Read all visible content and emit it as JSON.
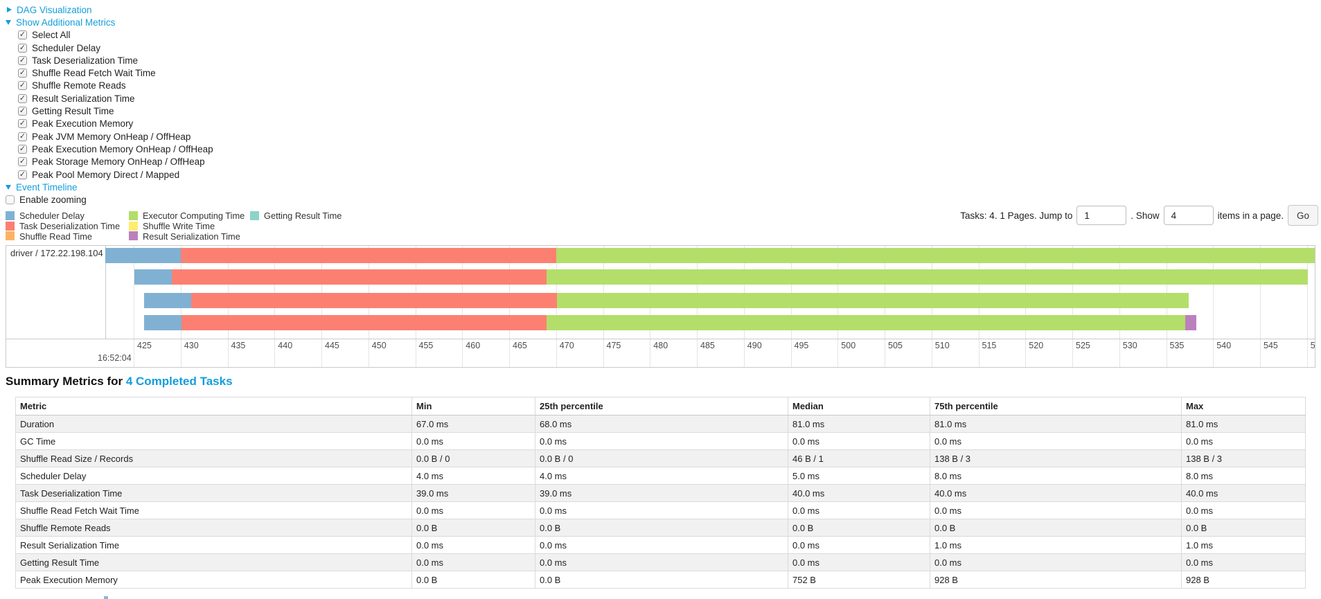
{
  "colors": {
    "link": "#129edb",
    "scheduler_delay": "#80B1D3",
    "task_deserialization": "#FB8072",
    "shuffle_read": "#FDB462",
    "executor_computing": "#B3DE69",
    "shuffle_write": "#FFED6F",
    "result_serialization": "#BC80BD",
    "getting_result": "#8DD3C7"
  },
  "sections": {
    "dag": {
      "label": "DAG Visualization",
      "state": "collapsed"
    },
    "metrics": {
      "label": "Show Additional Metrics",
      "state": "expanded"
    },
    "timeline": {
      "label": "Event Timeline",
      "state": "expanded"
    }
  },
  "metric_checkboxes": [
    {
      "label": "Select All",
      "checked": true
    },
    {
      "label": "Scheduler Delay",
      "checked": true
    },
    {
      "label": "Task Deserialization Time",
      "checked": true
    },
    {
      "label": "Shuffle Read Fetch Wait Time",
      "checked": true
    },
    {
      "label": "Shuffle Remote Reads",
      "checked": true
    },
    {
      "label": "Result Serialization Time",
      "checked": true
    },
    {
      "label": "Getting Result Time",
      "checked": true
    },
    {
      "label": "Peak Execution Memory",
      "checked": true
    },
    {
      "label": "Peak JVM Memory OnHeap / OffHeap",
      "checked": true
    },
    {
      "label": "Peak Execution Memory OnHeap / OffHeap",
      "checked": true
    },
    {
      "label": "Peak Storage Memory OnHeap / OffHeap",
      "checked": true
    },
    {
      "label": "Peak Pool Memory Direct / Mapped",
      "checked": true
    }
  ],
  "enable_zooming": {
    "label": "Enable zooming",
    "checked": false
  },
  "legend": {
    "columns": [
      [
        {
          "label": "Scheduler Delay",
          "color": "#80B1D3"
        },
        {
          "label": "Task Deserialization Time",
          "color": "#FB8072"
        },
        {
          "label": "Shuffle Read Time",
          "color": "#FDB462"
        }
      ],
      [
        {
          "label": "Executor Computing Time",
          "color": "#B3DE69"
        },
        {
          "label": "Shuffle Write Time",
          "color": "#FFED6F"
        },
        {
          "label": "Result Serialization Time",
          "color": "#BC80BD"
        }
      ],
      [
        {
          "label": "Getting Result Time",
          "color": "#8DD3C7"
        }
      ]
    ]
  },
  "pagination": {
    "tasks_text": "Tasks: 4. 1 Pages. Jump to",
    "jump_value": "1",
    "show_text": ". Show",
    "show_value": "4",
    "items_text": "items in a page.",
    "go_label": "Go"
  },
  "timeline_chart": {
    "type": "timeline",
    "group_label": "driver / 172.22.198.104",
    "axis": {
      "major_label": "16:52:04",
      "tick_start_ms": 425,
      "tick_step_ms": 5,
      "tick_count": 26
    },
    "tasks": [
      {
        "start": 422.0,
        "scheduler_delay_end": 430.0,
        "deserialization_end": 470.0,
        "computing_end": 551.5
      },
      {
        "start": 425.05,
        "scheduler_delay_end": 429.05,
        "deserialization_end": 469.0,
        "computing_end": 550.1
      },
      {
        "start": 426.1,
        "scheduler_delay_end": 431.1,
        "deserialization_end": 470.1,
        "computing_end": 537.4
      },
      {
        "start": 426.1,
        "scheduler_delay_end": 430.1,
        "deserialization_end": 469.0,
        "computing_end": 537.0,
        "result_serialization_end": 538.2
      }
    ]
  },
  "summary": {
    "title_prefix": "Summary Metrics for ",
    "title_link": "4 Completed Tasks",
    "table": {
      "headers": [
        "Metric",
        "Min",
        "25th percentile",
        "Median",
        "75th percentile",
        "Max"
      ],
      "rows": [
        [
          "Duration",
          "67.0 ms",
          "68.0 ms",
          "81.0 ms",
          "81.0 ms",
          "81.0 ms"
        ],
        [
          "GC Time",
          "0.0 ms",
          "0.0 ms",
          "0.0 ms",
          "0.0 ms",
          "0.0 ms"
        ],
        [
          "Shuffle Read Size / Records",
          "0.0 B / 0",
          "0.0 B / 0",
          "46 B / 1",
          "138 B / 3",
          "138 B / 3"
        ],
        [
          "Scheduler Delay",
          "4.0 ms",
          "4.0 ms",
          "5.0 ms",
          "8.0 ms",
          "8.0 ms"
        ],
        [
          "Task Deserialization Time",
          "39.0 ms",
          "39.0 ms",
          "40.0 ms",
          "40.0 ms",
          "40.0 ms"
        ],
        [
          "Shuffle Read Fetch Wait Time",
          "0.0 ms",
          "0.0 ms",
          "0.0 ms",
          "0.0 ms",
          "0.0 ms"
        ],
        [
          "Shuffle Remote Reads",
          "0.0 B",
          "0.0 B",
          "0.0 B",
          "0.0 B",
          "0.0 B"
        ],
        [
          "Result Serialization Time",
          "0.0 ms",
          "0.0 ms",
          "0.0 ms",
          "1.0 ms",
          "1.0 ms"
        ],
        [
          "Getting Result Time",
          "0.0 ms",
          "0.0 ms",
          "0.0 ms",
          "0.0 ms",
          "0.0 ms"
        ],
        [
          "Peak Execution Memory",
          "0.0 B",
          "0.0 B",
          "752 B",
          "928 B",
          "928 B"
        ]
      ]
    }
  }
}
